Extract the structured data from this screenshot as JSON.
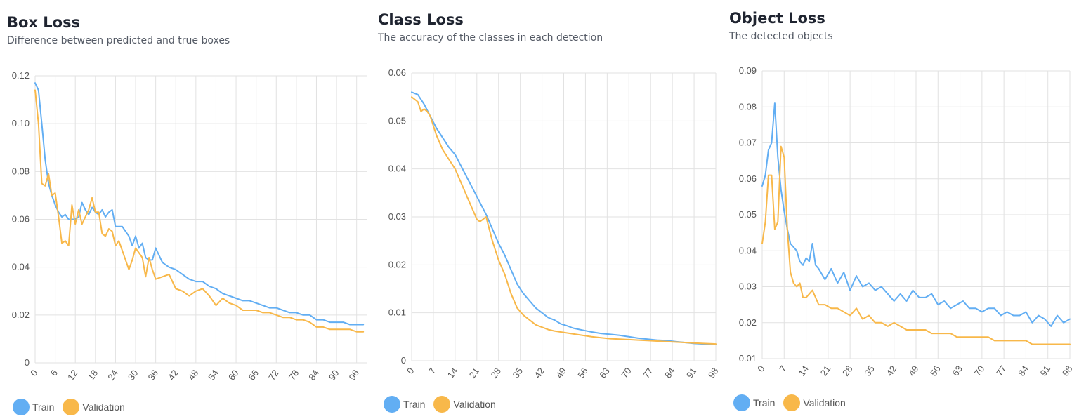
{
  "colors": {
    "train": "#62aef3",
    "validation": "#f8b84a",
    "grid": "#e2e2e2"
  },
  "chart_data": [
    {
      "type": "line",
      "title": "Box Loss",
      "subtitle": "Difference between predicted and true boxes",
      "xlim": [
        0,
        99
      ],
      "ylim": [
        0,
        0.12
      ],
      "y_ticks": [
        "0",
        "0.02",
        "0.04",
        "0.06",
        "0.08",
        "0.10",
        "0.12"
      ],
      "x_ticks": [
        "0",
        "6",
        "12",
        "18",
        "24",
        "30",
        "36",
        "42",
        "48",
        "54",
        "60",
        "66",
        "72",
        "78",
        "84",
        "90",
        "96"
      ],
      "legend": [
        "Train",
        "Validation"
      ],
      "series": [
        {
          "name": "Train",
          "x": [
            0,
            1,
            2,
            3,
            4,
            5,
            6,
            7,
            8,
            9,
            10,
            11,
            12,
            13,
            14,
            15,
            16,
            17,
            18,
            19,
            20,
            21,
            22,
            23,
            24,
            26,
            28,
            29,
            30,
            31,
            32,
            33,
            34,
            35,
            36,
            38,
            40,
            42,
            44,
            46,
            48,
            50,
            52,
            54,
            56,
            58,
            60,
            62,
            64,
            66,
            68,
            70,
            72,
            74,
            76,
            78,
            80,
            82,
            84,
            86,
            88,
            90,
            92,
            94,
            96,
            98
          ],
          "values": [
            0.117,
            0.114,
            0.1,
            0.085,
            0.075,
            0.07,
            0.066,
            0.063,
            0.061,
            0.062,
            0.06,
            0.06,
            0.06,
            0.061,
            0.067,
            0.064,
            0.062,
            0.065,
            0.063,
            0.062,
            0.064,
            0.061,
            0.063,
            0.064,
            0.057,
            0.057,
            0.053,
            0.049,
            0.053,
            0.048,
            0.05,
            0.044,
            0.043,
            0.043,
            0.048,
            0.042,
            0.04,
            0.039,
            0.037,
            0.035,
            0.034,
            0.034,
            0.032,
            0.031,
            0.029,
            0.028,
            0.027,
            0.026,
            0.026,
            0.025,
            0.024,
            0.023,
            0.023,
            0.022,
            0.021,
            0.021,
            0.02,
            0.02,
            0.018,
            0.018,
            0.017,
            0.017,
            0.017,
            0.016,
            0.016,
            0.016
          ]
        },
        {
          "name": "Validation",
          "x": [
            0,
            1,
            2,
            3,
            4,
            5,
            6,
            7,
            8,
            9,
            10,
            11,
            12,
            13,
            14,
            15,
            16,
            17,
            18,
            19,
            20,
            21,
            22,
            23,
            24,
            25,
            26,
            28,
            29,
            30,
            31,
            32,
            33,
            34,
            35,
            36,
            38,
            40,
            42,
            44,
            46,
            48,
            50,
            52,
            54,
            56,
            58,
            60,
            62,
            64,
            66,
            68,
            70,
            72,
            74,
            76,
            78,
            80,
            82,
            84,
            86,
            88,
            90,
            92,
            94,
            96,
            98
          ],
          "values": [
            0.114,
            0.1,
            0.075,
            0.074,
            0.079,
            0.07,
            0.071,
            0.061,
            0.05,
            0.051,
            0.049,
            0.066,
            0.058,
            0.064,
            0.058,
            0.061,
            0.064,
            0.069,
            0.063,
            0.063,
            0.054,
            0.053,
            0.056,
            0.055,
            0.049,
            0.051,
            0.047,
            0.039,
            0.043,
            0.048,
            0.046,
            0.044,
            0.036,
            0.044,
            0.039,
            0.035,
            0.036,
            0.037,
            0.031,
            0.03,
            0.028,
            0.03,
            0.031,
            0.028,
            0.024,
            0.027,
            0.025,
            0.024,
            0.022,
            0.022,
            0.022,
            0.021,
            0.021,
            0.02,
            0.019,
            0.019,
            0.018,
            0.018,
            0.017,
            0.015,
            0.015,
            0.014,
            0.014,
            0.014,
            0.014,
            0.013,
            0.013
          ]
        }
      ]
    },
    {
      "type": "line",
      "title": "Class Loss",
      "subtitle": "The accuracy of the classes in each detection",
      "xlim": [
        0,
        98
      ],
      "ylim": [
        0,
        0.06
      ],
      "y_ticks": [
        "0",
        "0.01",
        "0.02",
        "0.03",
        "0.04",
        "0.05",
        "0.06"
      ],
      "x_ticks": [
        "0",
        "7",
        "14",
        "21",
        "28",
        "35",
        "42",
        "49",
        "56",
        "63",
        "70",
        "77",
        "84",
        "91",
        "98"
      ],
      "legend": [
        "Train",
        "Validation"
      ],
      "series": [
        {
          "name": "Train",
          "x": [
            0,
            2,
            4,
            6,
            8,
            10,
            12,
            14,
            16,
            18,
            20,
            22,
            24,
            26,
            28,
            30,
            32,
            34,
            36,
            38,
            40,
            42,
            44,
            46,
            48,
            50,
            52,
            55,
            58,
            61,
            64,
            67,
            70,
            73,
            76,
            79,
            82,
            85,
            88,
            91,
            94,
            98
          ],
          "values": [
            0.056,
            0.0555,
            0.0535,
            0.051,
            0.0485,
            0.0465,
            0.0445,
            0.043,
            0.0405,
            0.038,
            0.0355,
            0.033,
            0.0305,
            0.0275,
            0.0245,
            0.022,
            0.019,
            0.016,
            0.014,
            0.0125,
            0.011,
            0.01,
            0.009,
            0.0085,
            0.0077,
            0.0073,
            0.0068,
            0.0064,
            0.006,
            0.0057,
            0.0055,
            0.0053,
            0.005,
            0.0047,
            0.0045,
            0.0043,
            0.0042,
            0.004,
            0.0038,
            0.0036,
            0.0035,
            0.0034
          ]
        },
        {
          "name": "Validation",
          "x": [
            0,
            2,
            3,
            4,
            5,
            6,
            8,
            10,
            12,
            14,
            16,
            18,
            20,
            21,
            22,
            24,
            26,
            28,
            30,
            32,
            34,
            36,
            38,
            40,
            42,
            44,
            46,
            48,
            50,
            52,
            55,
            58,
            61,
            64,
            67,
            70,
            73,
            76,
            79,
            82,
            85,
            88,
            91,
            94,
            98
          ],
          "values": [
            0.055,
            0.054,
            0.052,
            0.0525,
            0.052,
            0.051,
            0.047,
            0.044,
            0.042,
            0.04,
            0.037,
            0.034,
            0.031,
            0.0295,
            0.029,
            0.03,
            0.025,
            0.021,
            0.018,
            0.014,
            0.011,
            0.0095,
            0.0085,
            0.0075,
            0.007,
            0.0065,
            0.0062,
            0.006,
            0.0058,
            0.0056,
            0.0053,
            0.005,
            0.0048,
            0.0046,
            0.0045,
            0.0044,
            0.0043,
            0.0042,
            0.0041,
            0.004,
            0.0039,
            0.0038,
            0.0037,
            0.0036,
            0.0035
          ]
        }
      ]
    },
    {
      "type": "line",
      "title": "Object Loss",
      "subtitle": "The detected objects",
      "xlim": [
        0,
        98
      ],
      "ylim": [
        0.01,
        0.09
      ],
      "y_ticks": [
        "0.01",
        "0.02",
        "0.03",
        "0.04",
        "0.05",
        "0.06",
        "0.07",
        "0.08",
        "0.09"
      ],
      "x_ticks": [
        "0",
        "7",
        "14",
        "21",
        "28",
        "35",
        "42",
        "49",
        "56",
        "63",
        "70",
        "77",
        "84",
        "91",
        "98"
      ],
      "legend": [
        "Train",
        "Validation"
      ],
      "series": [
        {
          "name": "Train",
          "x": [
            0,
            1,
            2,
            3,
            4,
            5,
            6,
            7,
            8,
            9,
            10,
            11,
            12,
            13,
            14,
            15,
            16,
            17,
            18,
            20,
            22,
            24,
            26,
            28,
            30,
            32,
            34,
            36,
            38,
            40,
            42,
            44,
            46,
            48,
            50,
            52,
            54,
            56,
            58,
            60,
            62,
            64,
            66,
            68,
            70,
            72,
            74,
            76,
            78,
            80,
            82,
            84,
            86,
            88,
            90,
            92,
            94,
            96,
            98
          ],
          "values": [
            0.058,
            0.061,
            0.068,
            0.07,
            0.081,
            0.066,
            0.057,
            0.051,
            0.046,
            0.042,
            0.041,
            0.04,
            0.037,
            0.036,
            0.038,
            0.037,
            0.042,
            0.036,
            0.035,
            0.032,
            0.035,
            0.031,
            0.034,
            0.029,
            0.033,
            0.03,
            0.031,
            0.029,
            0.03,
            0.028,
            0.026,
            0.028,
            0.026,
            0.029,
            0.027,
            0.027,
            0.028,
            0.025,
            0.026,
            0.024,
            0.025,
            0.026,
            0.024,
            0.024,
            0.023,
            0.024,
            0.024,
            0.022,
            0.023,
            0.022,
            0.022,
            0.023,
            0.02,
            0.022,
            0.021,
            0.019,
            0.022,
            0.02,
            0.021
          ]
        },
        {
          "name": "Validation",
          "x": [
            0,
            1,
            2,
            3,
            4,
            5,
            6,
            7,
            8,
            9,
            10,
            11,
            12,
            13,
            14,
            15,
            16,
            17,
            18,
            20,
            22,
            24,
            26,
            28,
            30,
            32,
            34,
            36,
            38,
            40,
            42,
            44,
            46,
            48,
            50,
            52,
            54,
            56,
            58,
            60,
            62,
            64,
            66,
            68,
            70,
            72,
            74,
            76,
            78,
            80,
            82,
            84,
            86,
            88,
            90,
            92,
            94,
            96,
            98
          ],
          "values": [
            0.042,
            0.048,
            0.061,
            0.061,
            0.046,
            0.048,
            0.069,
            0.066,
            0.046,
            0.034,
            0.031,
            0.03,
            0.031,
            0.027,
            0.027,
            0.028,
            0.029,
            0.027,
            0.025,
            0.025,
            0.024,
            0.024,
            0.023,
            0.022,
            0.024,
            0.021,
            0.022,
            0.02,
            0.02,
            0.019,
            0.02,
            0.019,
            0.018,
            0.018,
            0.018,
            0.018,
            0.017,
            0.017,
            0.017,
            0.017,
            0.016,
            0.016,
            0.016,
            0.016,
            0.016,
            0.016,
            0.015,
            0.015,
            0.015,
            0.015,
            0.015,
            0.015,
            0.014,
            0.014,
            0.014,
            0.014,
            0.014,
            0.014,
            0.014
          ]
        }
      ]
    }
  ]
}
